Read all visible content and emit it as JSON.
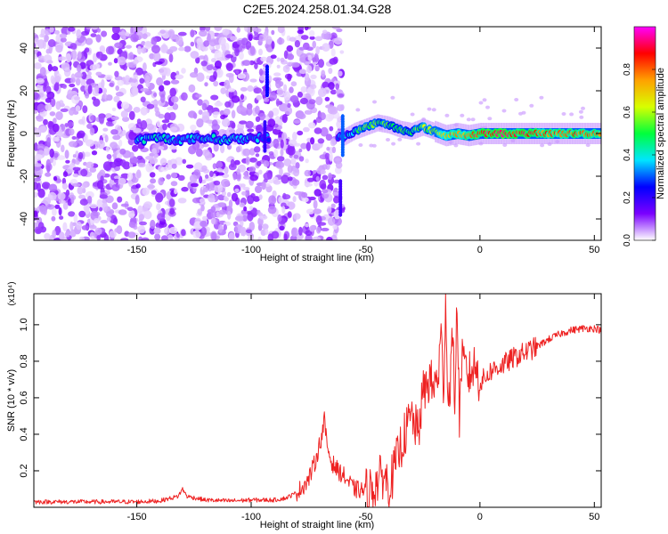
{
  "figure": {
    "title": "C2E5.2024.258.01.34.G28"
  },
  "chart_data": [
    {
      "type": "heatmap",
      "xlabel": "Height of straight line (km)",
      "ylabel": "Frequency (Hz)",
      "xlim": [
        -195,
        53
      ],
      "ylim": [
        -50,
        50
      ],
      "x_ticks": [
        -150,
        -100,
        -50,
        0,
        50
      ],
      "y_ticks": [
        -40,
        -20,
        0,
        20,
        40
      ],
      "colorbar": {
        "label": "Normalized spectral amplitude",
        "range": [
          0,
          1
        ],
        "ticks": [
          "0.0",
          "0.2",
          "0.4",
          "0.6",
          "0.8"
        ],
        "colors": [
          "#ffffff",
          "#7a00ff",
          "#0000ff",
          "#00e5ff",
          "#00ff3c",
          "#d8ff00",
          "#ffa000",
          "#ff0000",
          "#ff00ff"
        ]
      },
      "noise_region_x": [
        -195,
        -60
      ],
      "data_gap_x": [
        -133,
        -126
      ],
      "ridge": {
        "x": [
          -150,
          -140,
          -130,
          -120,
          -110,
          -100,
          -93,
          -60,
          -55,
          -50,
          -45,
          -40,
          -35,
          -30,
          -25,
          -20,
          -15,
          -10,
          -5,
          0,
          10,
          20,
          30,
          40,
          53
        ],
        "y": [
          -3,
          -2,
          -3,
          -2,
          -3,
          -2,
          -2,
          -2,
          1,
          3,
          5,
          4,
          2,
          1,
          3,
          1,
          -1,
          0,
          -1,
          0,
          0,
          0,
          0,
          0,
          0
        ],
        "level": [
          0.35,
          0.4,
          0.35,
          0.35,
          0.4,
          0.35,
          0.3,
          0.3,
          0.45,
          0.55,
          0.55,
          0.5,
          0.5,
          0.5,
          0.55,
          0.6,
          0.7,
          0.75,
          0.8,
          0.9,
          0.9,
          0.85,
          0.8,
          0.8,
          0.8
        ]
      }
    },
    {
      "type": "line",
      "xlabel": "Height of straight line (km)",
      "ylabel": "SNR (10 * v/v)",
      "y_multiplier": "(x10⁴)",
      "xlim": [
        -195,
        53
      ],
      "ylim": [
        0,
        1.17
      ],
      "x_ticks": [
        -150,
        -100,
        -50,
        0,
        50
      ],
      "y_ticks": [
        0.2,
        0.4,
        0.6,
        0.8,
        1.0
      ],
      "y_tick_labels": [
        "0.2",
        "0.4",
        "0.6",
        "0.8",
        "1.0"
      ],
      "line_color": "#ee2222",
      "series": [
        {
          "x": [
            -195,
            -170,
            -150,
            -140,
            -132,
            -130,
            -128,
            -120,
            -110,
            -100,
            -90,
            -85,
            -80,
            -75,
            -72,
            -69,
            -68,
            -67,
            -65,
            -62,
            -60,
            -55,
            -50,
            -47,
            -45,
            -42,
            -40,
            -38,
            -35,
            -30,
            -27,
            -25,
            -22,
            -20,
            -18,
            -17,
            -16,
            -15,
            -14,
            -13,
            -12,
            -11,
            -10,
            -9,
            -8,
            -5,
            -2,
            0,
            5,
            10,
            15,
            20,
            25,
            30,
            35,
            40,
            45,
            50,
            53
          ],
          "y": [
            0.03,
            0.03,
            0.03,
            0.035,
            0.06,
            0.1,
            0.06,
            0.04,
            0.035,
            0.04,
            0.04,
            0.05,
            0.08,
            0.15,
            0.25,
            0.4,
            0.48,
            0.35,
            0.25,
            0.2,
            0.18,
            0.1,
            0.09,
            0.1,
            0.14,
            0.18,
            0.12,
            0.18,
            0.32,
            0.5,
            0.4,
            0.62,
            0.7,
            0.65,
            0.75,
            0.98,
            0.6,
            1.17,
            0.55,
            0.7,
            0.95,
            0.6,
            1.12,
            0.5,
            0.8,
            0.72,
            0.78,
            0.68,
            0.75,
            0.78,
            0.82,
            0.85,
            0.88,
            0.92,
            0.95,
            0.97,
            0.98,
            0.98,
            0.97
          ]
        }
      ]
    }
  ]
}
